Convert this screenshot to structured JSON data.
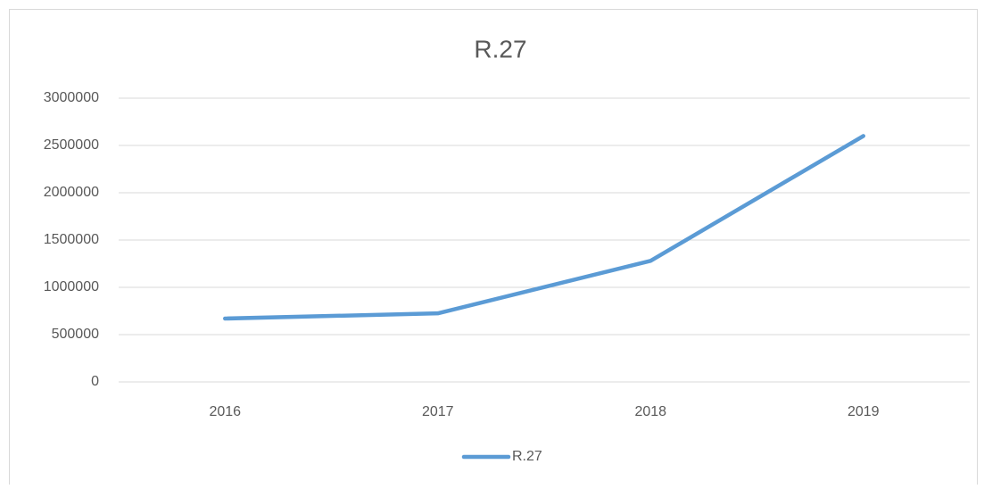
{
  "chart_data": {
    "type": "line",
    "title": "R.27",
    "categories": [
      "2016",
      "2017",
      "2018",
      "2019"
    ],
    "series": [
      {
        "name": "R.27",
        "color": "#5b9bd5",
        "values": [
          670000,
          725000,
          1280000,
          2600000
        ]
      }
    ],
    "ylim": [
      0,
      3000000
    ],
    "yticks": [
      0,
      500000,
      1000000,
      1500000,
      2000000,
      2500000,
      3000000
    ],
    "grid": true,
    "legend": "bottom"
  }
}
